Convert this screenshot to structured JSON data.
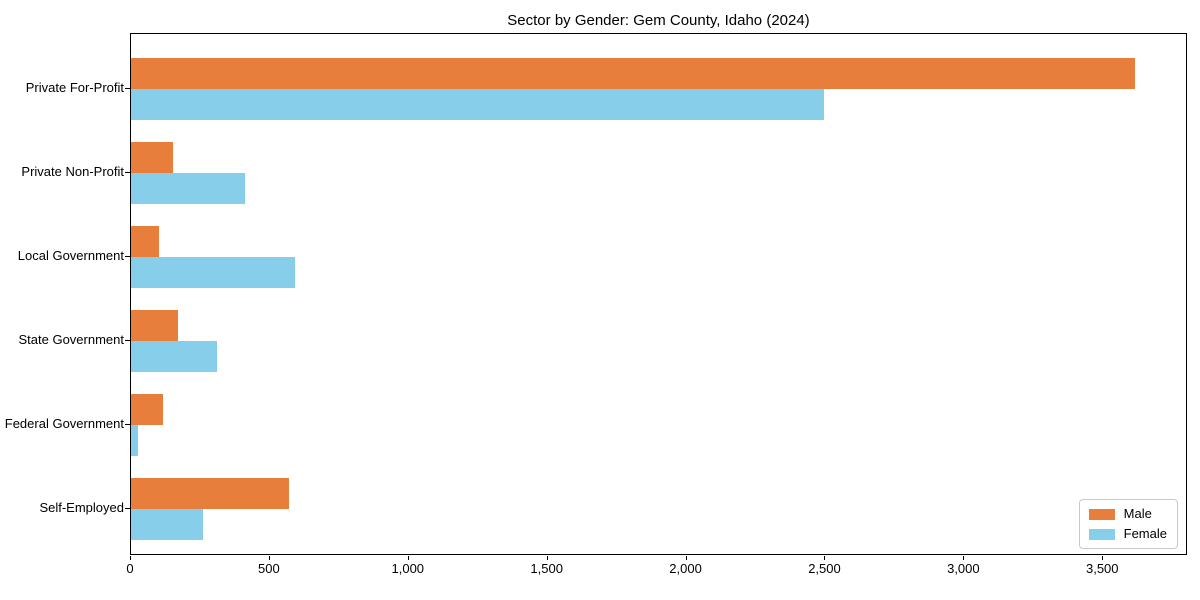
{
  "chart_data": {
    "type": "bar",
    "orientation": "horizontal",
    "title": "Sector by Gender: Gem County, Idaho (2024)",
    "categories": [
      "Private For-Profit",
      "Private Non-Profit",
      "Local Government",
      "State Government",
      "Federal Government",
      "Self-Employed"
    ],
    "series": [
      {
        "name": "Male",
        "color": "#e87e3b",
        "values": [
          3620,
          150,
          100,
          170,
          115,
          570
        ]
      },
      {
        "name": "Female",
        "color": "#87ceeb",
        "values": [
          2500,
          410,
          590,
          310,
          25,
          260
        ]
      }
    ],
    "xlabel": "",
    "ylabel": "",
    "xlim": [
      0,
      3805
    ],
    "xticks": [
      {
        "value": 0,
        "label": "0"
      },
      {
        "value": 500,
        "label": "500"
      },
      {
        "value": 1000,
        "label": "1,000"
      },
      {
        "value": 1500,
        "label": "1,500"
      },
      {
        "value": 2000,
        "label": "2,000"
      },
      {
        "value": 2500,
        "label": "2,500"
      },
      {
        "value": 3000,
        "label": "3,000"
      },
      {
        "value": 3500,
        "label": "3,500"
      }
    ],
    "grid": false,
    "legend": {
      "position": "lower right",
      "entries": [
        "Male",
        "Female"
      ]
    }
  }
}
